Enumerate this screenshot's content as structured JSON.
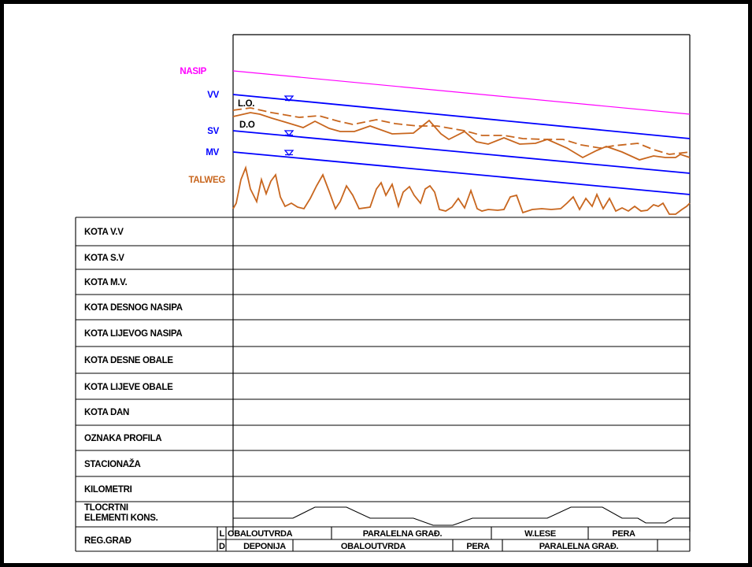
{
  "profile": {
    "labels": {
      "nasip": "NASIP",
      "vv": "VV",
      "sv": "SV",
      "mv": "MV",
      "talweg": "TALWEG",
      "lo": "L.O.",
      "do": "D.O"
    },
    "colors": {
      "nasip": "#ff00ff",
      "water": "#0000ff",
      "talweg": "#c8661e",
      "grid": "#000000"
    }
  },
  "table": {
    "rows": [
      "KOTA V.V",
      "KOTA S.V",
      "KOTA M.V.",
      "KOTA DESNOG NASIPA",
      "KOTA LIJEVOG NASIPA",
      "KOTA DESNE OBALE",
      "KOTA LIJEVE OBALE",
      "KOTA DAN",
      "OZNAKA PROFILA",
      "STACIONAŽA",
      "KILOMETRI"
    ],
    "tlocrtni_line1": "TLOCRTNI",
    "tlocrtni_line2": "ELEMENTI KONS.",
    "reg_grad": "REG.GRAĐ",
    "side_l": "L",
    "side_d": "D",
    "left_segments": [
      "OBALOUTVRDA",
      "PARALELNA GRAĐ.",
      "W.LESE",
      "PERA"
    ],
    "right_segments": [
      "DEPONIJA",
      "OBALOUTVRDA",
      "PERA",
      "PARALELNA GRAĐ."
    ]
  }
}
